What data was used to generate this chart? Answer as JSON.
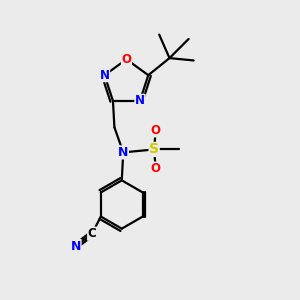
{
  "bg_color": "#ebebeb",
  "bond_color": "#000000",
  "atom_colors": {
    "N": "#0000ff",
    "O": "#ff0000",
    "S": "#cccc00",
    "C": "#000000"
  }
}
